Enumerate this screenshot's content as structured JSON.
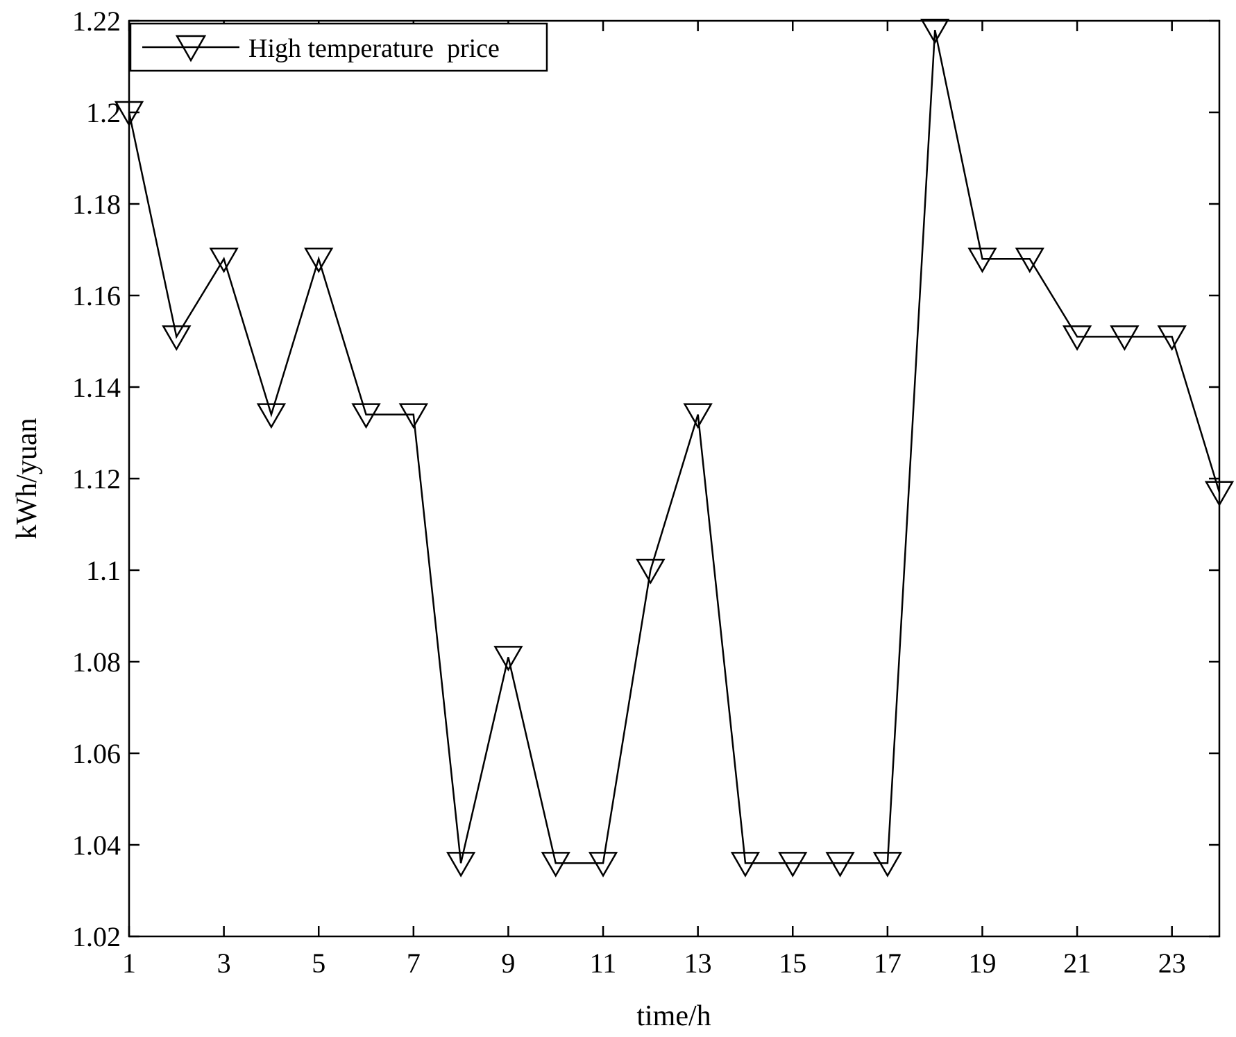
{
  "chart_data": {
    "type": "line",
    "title": "",
    "xlabel": "time/h",
    "ylabel": "kWh/yuan",
    "xlim": [
      1,
      24
    ],
    "ylim": [
      1.02,
      1.22
    ],
    "x_ticks": [
      1,
      3,
      5,
      7,
      9,
      11,
      13,
      15,
      17,
      19,
      21,
      23
    ],
    "x_tick_labels": [
      "1",
      "3",
      "5",
      "7",
      "9",
      "11",
      "13",
      "15",
      "17",
      "19",
      "21",
      "23"
    ],
    "y_ticks": [
      1.02,
      1.04,
      1.06,
      1.08,
      1.1,
      1.12,
      1.14,
      1.16,
      1.18,
      1.2,
      1.22
    ],
    "y_tick_labels": [
      "1.02",
      "1.04",
      "1.06",
      "1.08",
      "1.1",
      "1.12",
      "1.14",
      "1.16",
      "1.18",
      "1.2",
      "1.22"
    ],
    "grid": false,
    "legend_position": "top-left",
    "series": [
      {
        "name": "High temperature  price",
        "marker": "triangle-down",
        "color": "#000000",
        "x": [
          1,
          2,
          3,
          4,
          5,
          6,
          7,
          8,
          9,
          10,
          11,
          12,
          13,
          14,
          15,
          16,
          17,
          18,
          19,
          20,
          21,
          22,
          23,
          24
        ],
        "values": [
          1.2,
          1.151,
          1.168,
          1.134,
          1.168,
          1.134,
          1.134,
          1.036,
          1.081,
          1.036,
          1.036,
          1.1,
          1.134,
          1.036,
          1.036,
          1.036,
          1.036,
          1.218,
          1.168,
          1.168,
          1.151,
          1.151,
          1.151,
          1.117
        ]
      }
    ]
  }
}
